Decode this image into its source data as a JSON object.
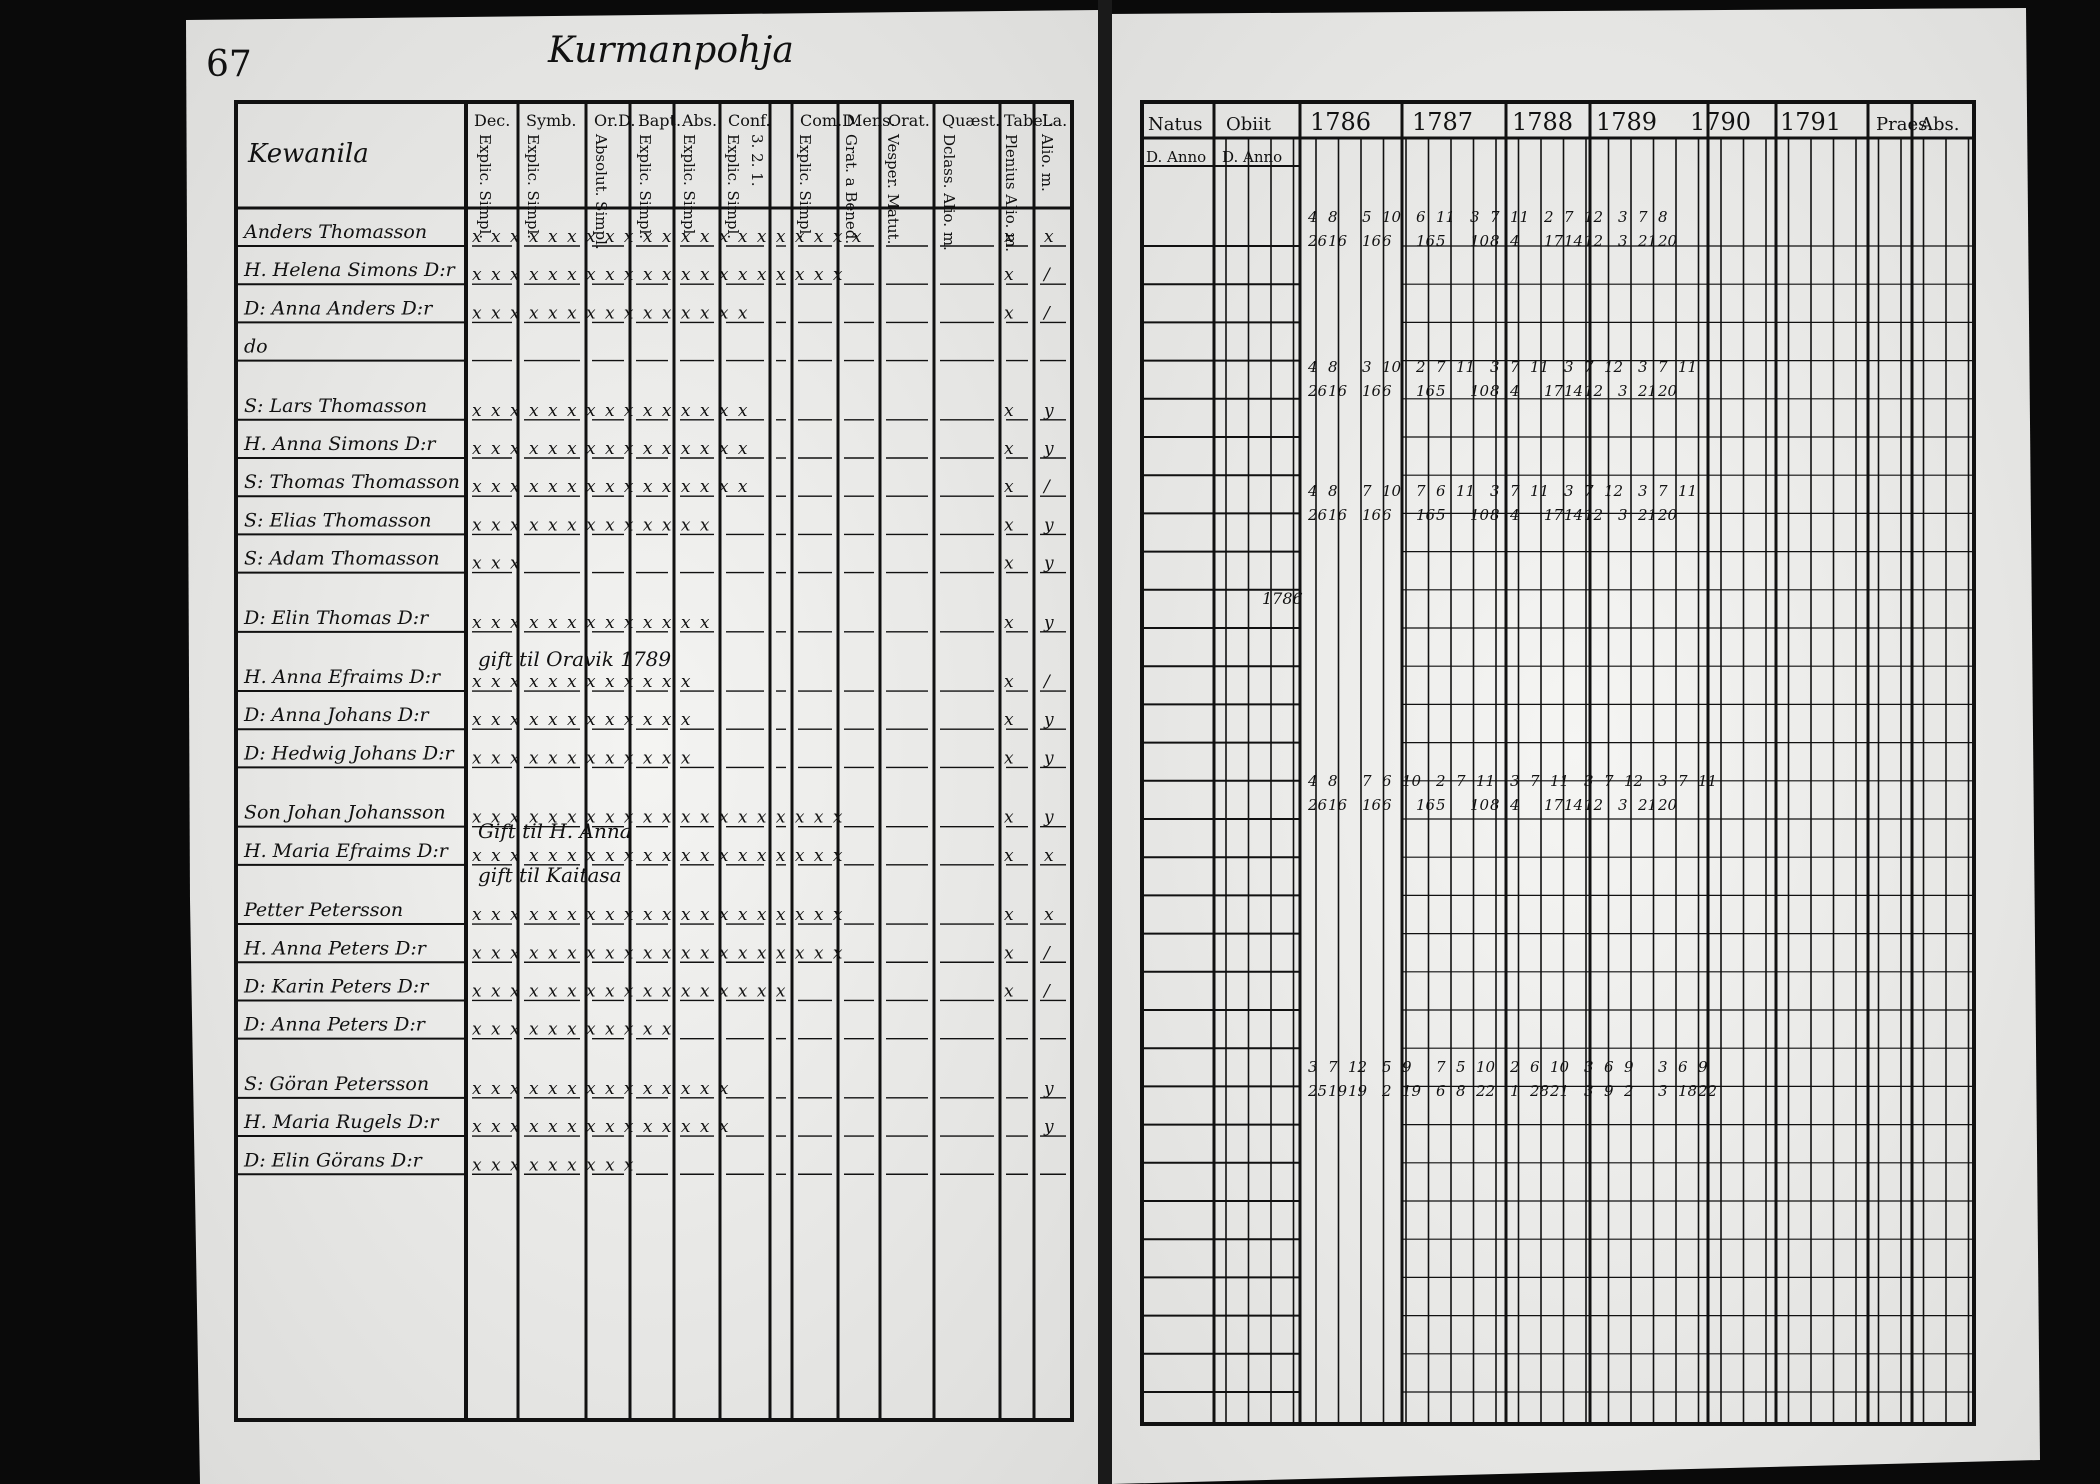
{
  "left_page": {
    "page_number": "67",
    "village": "Kurmanpohja",
    "farm_name": "Kewanila",
    "column_headers": [
      "Dec.",
      "Symb.",
      "Or.D.",
      "Bapt.",
      "Abs.",
      "Conf.",
      "Com.D.",
      "Mens.",
      "Orat.",
      "Quæst.",
      "Tabel.",
      "La."
    ],
    "sub_headers": [
      "Explic. Simpl.",
      "Explic. Simpl.",
      "Absolut. Simpl.",
      "Explic. Simpl.",
      "Explic. Simpl.",
      "Explic. Simpl.",
      "3. 2. 1.",
      "Explic. Simpl.",
      "Grat. a Bened.",
      "Vesper. Matut.",
      "Dclass. Alio. m.",
      "Plenius Alio. m.",
      "Alio. m."
    ],
    "entries": [
      {
        "name": "Anders Thomasson",
        "marks": "x x x x x x x x x x x x x x x x x x x x x",
        "tabel": "x",
        "la": "x"
      },
      {
        "name": "H. Helena Simons D:r",
        "marks": "x x x x x x x x x x x x x x x x x x x x",
        "tabel": "x",
        "la": "/"
      },
      {
        "name": "D: Anna Anders D:r",
        "marks": "x x x x x x x x x x x x x x x",
        "tabel": "x",
        "la": "/"
      },
      {
        "name": "do",
        "marks": "",
        "tabel": "",
        "la": ""
      },
      {
        "name": "S: Lars Thomasson",
        "marks": "x x x x x x x x x x x x x x x",
        "tabel": "x",
        "la": "y"
      },
      {
        "name": "H. Anna Simons D:r",
        "marks": "x x x x x x x x x x x x x x x",
        "tabel": "x",
        "la": "y"
      },
      {
        "name": "S: Thomas Thomasson",
        "marks": "x x x x x x x x x x x x x x x",
        "tabel": "x",
        "la": "/"
      },
      {
        "name": "S: Elias Thomasson",
        "marks": "x x x x x x x x x x x x x",
        "tabel": "x",
        "la": "y"
      },
      {
        "name": "S: Adam Thomasson",
        "marks": "x x x",
        "tabel": "x",
        "la": "y"
      },
      {
        "name": "D: Elin Thomas D:r",
        "marks": "x x x x x x x x x x x x x",
        "tabel": "x",
        "la": "y"
      },
      {
        "name": "H. Anna Efraims D:r",
        "marks": "x x x x x x x x x x x x",
        "tabel": "x",
        "la": "/"
      },
      {
        "name": "D: Anna Johans D:r",
        "marks": "x x x x x x x x x x x x",
        "tabel": "x",
        "la": "y"
      },
      {
        "name": "D: Hedwig Johans D:r",
        "marks": "x x x x x x x x x x x x",
        "tabel": "x",
        "la": "y"
      },
      {
        "name": "Son Johan Johansson",
        "marks": "x x x x x x x x x x x x x x x x x x x x",
        "tabel": "x",
        "la": "y"
      },
      {
        "name": "H. Maria Efraims D:r",
        "marks": "x x x x x x x x x x x x x x x x x x x x",
        "tabel": "x",
        "la": "x"
      },
      {
        "name": "Petter Petersson",
        "marks": "x x x x x x x x x x x x x x x x x x x x",
        "tabel": "x",
        "la": "x"
      },
      {
        "name": "H. Anna Peters D:r",
        "marks": "x x x x x x x x x x x x x x x x x x x x",
        "tabel": "x",
        "la": "/"
      },
      {
        "name": "D: Karin Peters D:r",
        "marks": "x x x x x x x x x x x x x x x x x",
        "tabel": "x",
        "la": "/"
      },
      {
        "name": "D: Anna Peters D:r",
        "marks": "x x x x x x x x x x x",
        "tabel": "",
        "la": ""
      },
      {
        "name": "S: Göran Petersson",
        "marks": "x x x x x x x x x x x x x x",
        "tabel": "",
        "la": "y"
      },
      {
        "name": "H. Maria Rugels D:r",
        "marks": "x x x x x x x x x x x x x x",
        "tabel": "",
        "la": "y"
      },
      {
        "name": "D: Elin Görans D:r",
        "marks": "x x x x x x x x x",
        "tabel": "",
        "la": ""
      }
    ],
    "annotations": [
      {
        "text": "gift til Oravik 1789"
      },
      {
        "text": "Gift til H. Anna"
      },
      {
        "text": "gift til Kaitasa"
      }
    ]
  },
  "right_page": {
    "headers": [
      "Natus",
      "Obiit",
      "1786",
      "1787",
      "1788",
      "1789",
      "1790",
      "1791",
      "Praes.",
      "Abs."
    ],
    "sub_headers": [
      "D. Anno",
      "D. Anno"
    ],
    "anno_note": "1786",
    "year_blocks": [
      {
        "rows": [
          [
            "4",
            "8",
            "",
            "5",
            "10",
            "",
            "6",
            "11",
            "",
            "3",
            "7",
            "11",
            "",
            "2",
            "7",
            "12",
            "",
            "3",
            "7",
            "8"
          ],
          [
            "26",
            "16",
            "",
            "16",
            "6",
            "",
            "16",
            "5",
            "",
            "10",
            "8",
            "4",
            "",
            "17",
            "14",
            "12",
            "",
            "3",
            "21",
            "20"
          ]
        ]
      },
      {
        "rows": [
          [
            "4",
            "8",
            "",
            "3",
            "10",
            "",
            "2",
            "7",
            "11",
            "",
            "3",
            "7",
            "11",
            "",
            "3",
            "7",
            "12",
            "",
            "3",
            "7",
            "11"
          ],
          [
            "26",
            "16",
            "",
            "16",
            "6",
            "",
            "16",
            "5",
            "",
            "10",
            "8",
            "4",
            "",
            "17",
            "14",
            "12",
            "",
            "3",
            "21",
            "20"
          ]
        ]
      },
      {
        "rows": [
          [
            "4",
            "8",
            "",
            "7",
            "10",
            "",
            "7",
            "6",
            "11",
            "",
            "3",
            "7",
            "11",
            "",
            "3",
            "7",
            "12",
            "",
            "3",
            "7",
            "11"
          ],
          [
            "26",
            "16",
            "",
            "16",
            "6",
            "",
            "16",
            "5",
            "",
            "10",
            "8",
            "4",
            "",
            "17",
            "14",
            "12",
            "",
            "3",
            "21",
            "20"
          ]
        ]
      },
      {
        "rows": [
          [
            "4",
            "8",
            "",
            "7",
            "6",
            "10",
            "",
            "2",
            "7",
            "11",
            "",
            "3",
            "7",
            "11",
            "",
            "3",
            "7",
            "12",
            "",
            "3",
            "7",
            "11"
          ],
          [
            "26",
            "16",
            "",
            "16",
            "6",
            "",
            "16",
            "5",
            "",
            "10",
            "8",
            "4",
            "",
            "17",
            "14",
            "12",
            "",
            "3",
            "21",
            "20"
          ]
        ]
      },
      {
        "rows": [
          [
            "3",
            "7",
            "12",
            "",
            "5",
            "9",
            "",
            "7",
            "5",
            "10",
            "",
            "2",
            "6",
            "10",
            "",
            "3",
            "6",
            "9",
            "",
            "3",
            "6",
            "9"
          ],
          [
            "25",
            "19",
            "19",
            "",
            "2",
            "19",
            "",
            "6",
            "8",
            "22",
            "",
            "1",
            "28",
            "21",
            "",
            "3",
            "9",
            "2",
            "",
            "3",
            "18",
            "22"
          ]
        ]
      }
    ]
  }
}
